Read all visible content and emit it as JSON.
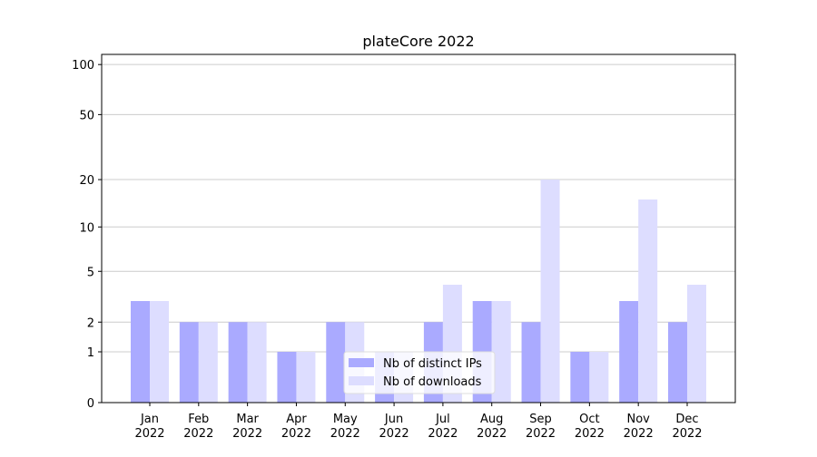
{
  "chart_data": {
    "type": "bar",
    "title": "plateCore 2022",
    "categories": [
      "Jan\n2022",
      "Feb\n2022",
      "Mar\n2022",
      "Apr\n2022",
      "May\n2022",
      "Jun\n2022",
      "Jul\n2022",
      "Aug\n2022",
      "Sep\n2022",
      "Oct\n2022",
      "Nov\n2022",
      "Dec\n2022"
    ],
    "series": [
      {
        "name": "Nb of distinct IPs",
        "color": "#aaaaff",
        "values": [
          3,
          2,
          2,
          1,
          2,
          1,
          2,
          3,
          2,
          1,
          3,
          2
        ]
      },
      {
        "name": "Nb of downloads",
        "color": "#ddddff",
        "values": [
          3,
          2,
          2,
          1,
          2,
          1,
          4,
          3,
          20,
          1,
          15,
          4
        ]
      }
    ],
    "yscale": "log1p",
    "ylim": [
      0,
      115
    ],
    "yticks": [
      0,
      1,
      2,
      5,
      10,
      20,
      50,
      100
    ],
    "grid": true,
    "legend": "lower center"
  }
}
